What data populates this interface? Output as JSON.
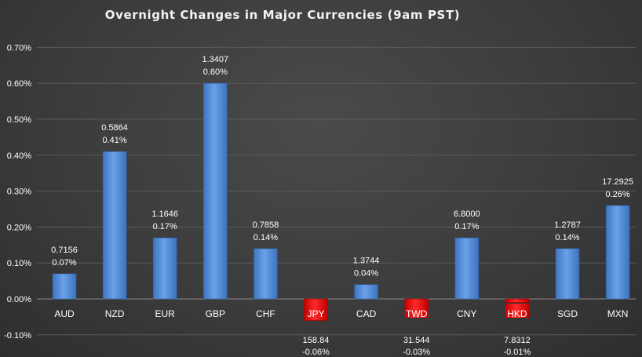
{
  "chart_data": {
    "type": "bar",
    "title": "Overnight Changes in Major Currencies (9am PST)",
    "xlabel": "",
    "ylabel": "",
    "categories": [
      "AUD",
      "NZD",
      "EUR",
      "GBP",
      "CHF",
      "JPY",
      "CAD",
      "TWD",
      "CNY",
      "HKD",
      "SGD",
      "MXN"
    ],
    "series": [
      {
        "values": [
          0.07,
          0.41,
          0.17,
          0.6,
          0.14,
          -0.06,
          0.04,
          -0.03,
          0.17,
          -0.01,
          0.14,
          0.26
        ],
        "value_labels": [
          "0.07%",
          "0.41%",
          "0.17%",
          "0.60%",
          "0.14%",
          "-0.06%",
          "0.04%",
          "-0.03%",
          "0.17%",
          "-0.01%",
          "0.14%",
          "0.26%"
        ],
        "rates": [
          "0.7156",
          "0.5864",
          "1.1646",
          "1.3407",
          "0.7858",
          "158.84",
          "1.3744",
          "31.544",
          "6.8000",
          "7.8312",
          "1.2787",
          "17.2925"
        ]
      }
    ],
    "ylim": [
      -0.1,
      0.7
    ],
    "yticks": [
      -0.1,
      0.0,
      0.1,
      0.2,
      0.3,
      0.4,
      0.5,
      0.6,
      0.7
    ],
    "ytick_labels": [
      "-0.10%",
      "0.00%",
      "0.10%",
      "0.20%",
      "0.30%",
      "0.40%",
      "0.50%",
      "0.60%",
      "0.70%"
    ],
    "grid": true,
    "legend": "none",
    "colors": {
      "positive": "#5b93dc",
      "negative": "#ee1111",
      "grid": "#5a5a5a",
      "text": "#ffffff",
      "background": "#3f3f3f"
    }
  }
}
